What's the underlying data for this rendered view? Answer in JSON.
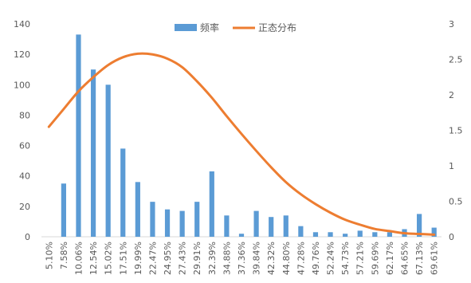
{
  "chart_data": {
    "type": "bar",
    "title": "",
    "xlabel": "",
    "ylabel": "",
    "y2label": "",
    "categories": [
      "5.10%",
      "7.58%",
      "10.06%",
      "12.54%",
      "15.02%",
      "17.51%",
      "19.99%",
      "22.47%",
      "24.95%",
      "27.43%",
      "29.91%",
      "32.39%",
      "34.88%",
      "37.36%",
      "39.84%",
      "42.32%",
      "44.80%",
      "47.28%",
      "49.76%",
      "52.24%",
      "54.73%",
      "57.21%",
      "59.69%",
      "62.17%",
      "64.65%",
      "67.13%",
      "69.61%"
    ],
    "series": [
      {
        "name": "频率",
        "kind": "bar",
        "axis": "left",
        "color": "#5B9BD5",
        "values": [
          0,
          35,
          133,
          110,
          100,
          58,
          36,
          23,
          18,
          17,
          23,
          43,
          14,
          2,
          17,
          13,
          14,
          7,
          3,
          3,
          2,
          4,
          3,
          3,
          5,
          15,
          6
        ]
      },
      {
        "name": "正态分布",
        "kind": "line",
        "axis": "right",
        "color": "#ED7D31",
        "values": [
          1.55,
          1.8,
          2.05,
          2.25,
          2.42,
          2.53,
          2.58,
          2.57,
          2.51,
          2.39,
          2.19,
          1.96,
          1.7,
          1.45,
          1.21,
          0.98,
          0.77,
          0.6,
          0.46,
          0.34,
          0.24,
          0.17,
          0.11,
          0.08,
          0.05,
          0.04,
          0.03
        ]
      }
    ],
    "yleft": {
      "min": 0,
      "max": 140,
      "ticks": [
        0,
        20,
        40,
        60,
        80,
        100,
        120,
        140
      ]
    },
    "yright": {
      "min": 0,
      "max": 3,
      "ticks": [
        "0",
        "0.5",
        "1",
        "1.5",
        "2",
        "2.5",
        "3"
      ]
    },
    "grid": false,
    "legend_position": "top"
  }
}
